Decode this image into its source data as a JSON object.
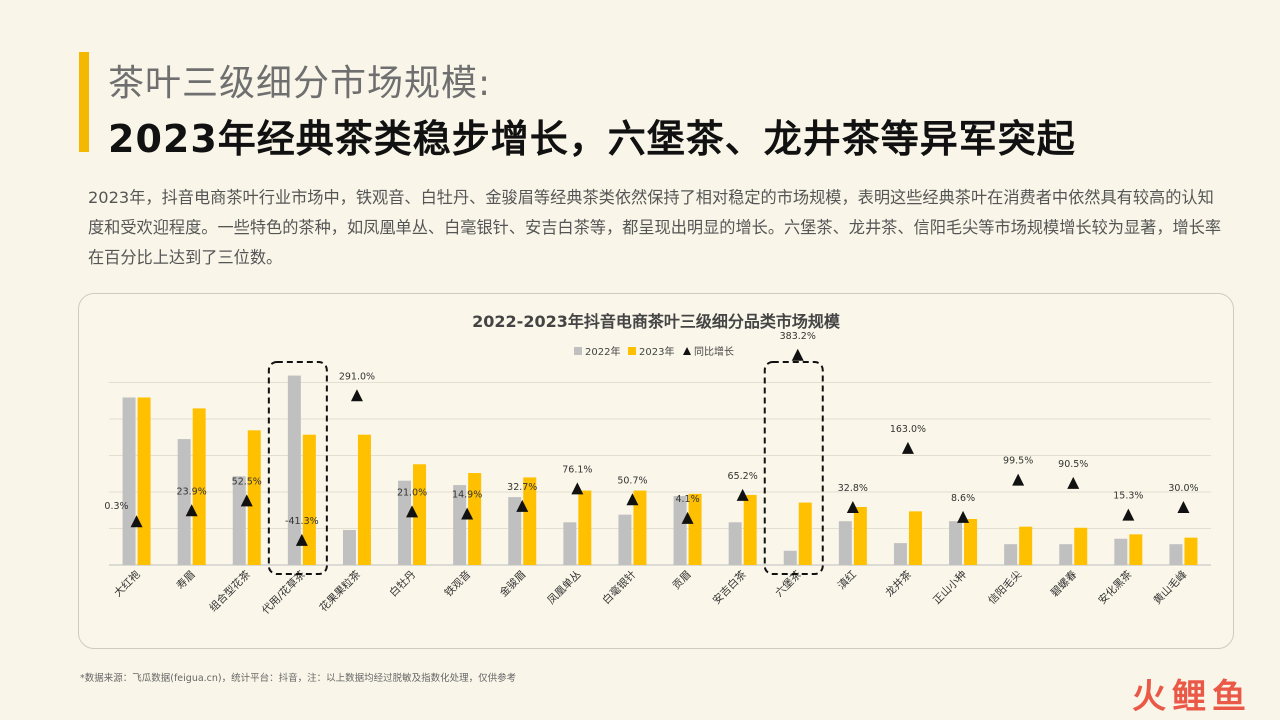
{
  "header": {
    "title_line1": "茶叶三级细分市场规模:",
    "title_line2": "2023年经典茶类稳步增长，六堡茶、龙井茶等异军突起"
  },
  "description": "2023年，抖音电商茶叶行业市场中，铁观音、白牡丹、金骏眉等经典茶类依然保持了相对稳定的市场规模，表明这些经典茶叶在消费者中依然具有较高的认知度和受欢迎程度。一些特色的茶种，如凤凰单丛、白毫银针、安吉白茶等，都呈现出明显的增长。六堡茶、龙井茶、信阳毛尖等市场规模增长较为显著，增长率在百分比上达到了三位数。",
  "footnote": "*数据来源：飞瓜数据(feigua.cn)，统计平台：抖音，注：以上数据均经过脱敏及指数化处理，仅供参考",
  "logo": {
    "text": "火鲤鱼"
  },
  "colors": {
    "accent": "#f5b800",
    "series_2022": "#c0c0c0",
    "series_2023": "#ffc000",
    "marker": "#111111"
  },
  "chart_data": {
    "type": "bar",
    "title": "2022-2023年抖音电商茶叶三级细分品类市场规模",
    "legend_position": "top-center",
    "grid": true,
    "ylim": [
      0,
      100
    ],
    "categories": [
      "大红袍",
      "寿眉",
      "组合型花茶",
      "代用/花草茶",
      "花果果粒茶",
      "白牡丹",
      "铁观音",
      "金骏眉",
      "凤凰单丛",
      "白毫银针",
      "贡眉",
      "安吉白茶",
      "六堡茶",
      "滇红",
      "龙井茶",
      "正山小种",
      "信阳毛尖",
      "碧螺春",
      "安化黑茶",
      "黄山毛峰"
    ],
    "series": [
      {
        "name": "2022年",
        "values": [
          76.5,
          57.5,
          40.5,
          86.5,
          16,
          38.5,
          36.5,
          31,
          19.5,
          23,
          31.5,
          19.5,
          6.5,
          20,
          10,
          20,
          9.5,
          9.5,
          12,
          9.5
        ]
      },
      {
        "name": "2023年",
        "values": [
          76.5,
          71.5,
          61.5,
          59.5,
          59.5,
          46,
          42,
          40,
          34,
          34,
          32.5,
          32,
          28.5,
          26.5,
          24.5,
          21,
          17.5,
          17,
          14,
          12.5
        ]
      }
    ],
    "growth_series": {
      "name": "同比增长",
      "labels": [
        "0.3%",
        "23.9%",
        "52.5%",
        "-41.3%",
        "291.0%",
        "21.0%",
        "14.9%",
        "32.7%",
        "76.1%",
        "50.7%",
        "4.1%",
        "65.2%",
        "383.2%",
        "32.8%",
        "163.0%",
        "8.6%",
        "99.5%",
        "90.5%",
        "15.3%",
        "30.0%"
      ],
      "values": [
        0.3,
        23.9,
        52.5,
        -41.3,
        291.0,
        21.0,
        14.9,
        32.7,
        76.1,
        50.7,
        4.1,
        65.2,
        383.2,
        32.8,
        163.0,
        8.6,
        99.5,
        90.5,
        15.3,
        30.0
      ],
      "marker_level": [
        20,
        25,
        29.5,
        11.5,
        77.5,
        24.5,
        23.5,
        27,
        35,
        30,
        21.5,
        32,
        96,
        26.5,
        53.5,
        22,
        39,
        37.5,
        23,
        26.5
      ]
    },
    "highlighted": [
      "代用/花草茶",
      "六堡茶"
    ]
  }
}
